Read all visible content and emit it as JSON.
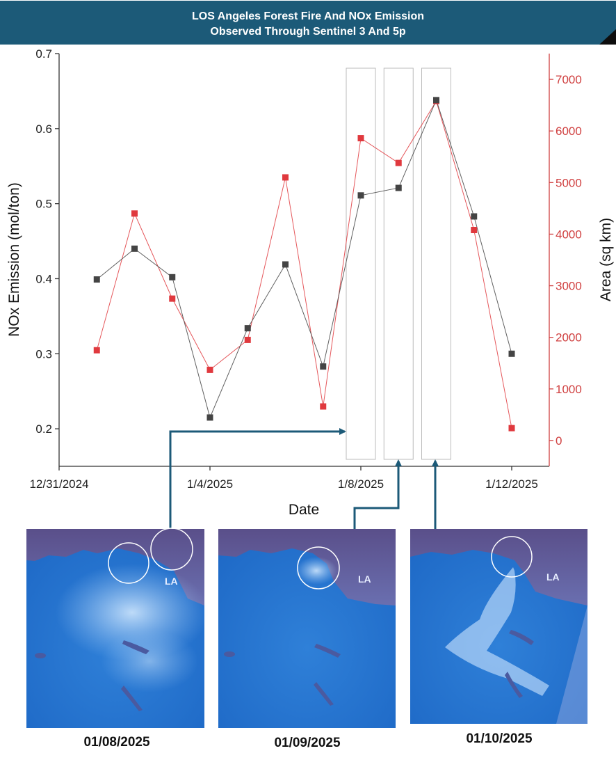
{
  "header": {
    "title_line1": "LOS Angeles Forest Fire And NOx Emission",
    "title_line2": "Observed Through Sentinel 3 And 5p"
  },
  "colors": {
    "banner": "#1c5a78",
    "nox_series": "#444444",
    "area_series": "#e0393e",
    "right_axis": "#d04040",
    "arrow": "#1c5a78"
  },
  "chart_data": {
    "type": "line",
    "xlabel": "Date",
    "ylabel_left": "NOx Emission (mol/ton)",
    "ylabel_right": "Area (sq km)",
    "x_ticks": [
      "12/31/2024",
      "1/4/2025",
      "1/8/2025",
      "1/12/2025"
    ],
    "y_left_ticks": [
      "0.2",
      "0.3",
      "0.4",
      "0.5",
      "0.6",
      "0.7"
    ],
    "y_right_ticks": [
      "0",
      "1000",
      "2000",
      "3000",
      "4000",
      "5000",
      "6000",
      "7000"
    ],
    "x_range": [
      "12/31/2024",
      "1/12/2025"
    ],
    "ylim_left": [
      0.15,
      0.7
    ],
    "ylim_right": [
      -500,
      7500
    ],
    "x": [
      "1/1/2025",
      "1/2/2025",
      "1/3/2025",
      "1/4/2025",
      "1/5/2025",
      "1/6/2025",
      "1/7/2025",
      "1/8/2025",
      "1/9/2025",
      "1/10/2025",
      "1/11/2025",
      "1/12/2025"
    ],
    "series": [
      {
        "axis": "left",
        "values": [
          0.399,
          0.44,
          0.402,
          0.215,
          0.334,
          0.419,
          0.283,
          0.511,
          0.521,
          0.638,
          0.483,
          0.3
        ]
      },
      {
        "axis": "right",
        "values": [
          1750,
          4400,
          2750,
          1370,
          1950,
          5100,
          660,
          5860,
          5380,
          6580,
          4080,
          240
        ]
      }
    ],
    "highlighted_dates": [
      "1/8/2025",
      "1/9/2025",
      "1/10/2025"
    ],
    "grid": false
  },
  "images": [
    {
      "date": "01/08/2025",
      "label": "LA"
    },
    {
      "date": "01/09/2025",
      "label": "LA"
    },
    {
      "date": "01/10/2025",
      "label": "LA"
    }
  ]
}
